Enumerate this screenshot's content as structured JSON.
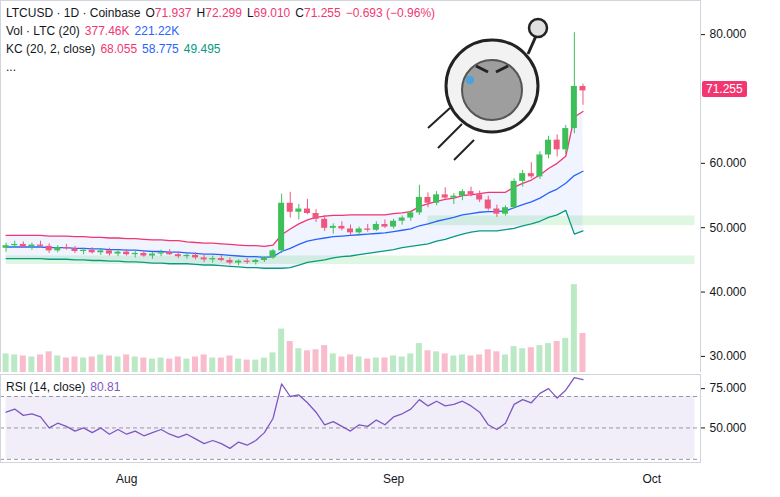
{
  "chart_data": {
    "type": "candlestick",
    "title": "LTCUSD · 1D · Coinbase",
    "quote": [
      {
        "prefix": "O",
        "text": "71.937"
      },
      {
        "prefix": "H",
        "text": "72.299"
      },
      {
        "prefix": "L",
        "text": "69.010"
      },
      {
        "prefix": "C",
        "text": "71.255"
      },
      {
        "prefix": "",
        "text": "−0.693 (−0.96%)"
      }
    ],
    "more": "...",
    "categories": [
      null,
      null,
      null,
      null,
      null,
      null,
      null,
      null,
      null,
      null,
      null,
      null,
      null,
      null,
      "Aug",
      null,
      null,
      null,
      null,
      null,
      null,
      null,
      null,
      null,
      null,
      null,
      null,
      null,
      null,
      null,
      null,
      null,
      null,
      null,
      null,
      null,
      null,
      null,
      null,
      null,
      null,
      null,
      null,
      null,
      null,
      "Sep",
      null,
      null,
      null,
      null,
      null,
      null,
      null,
      null,
      null,
      null,
      null,
      null,
      null,
      null,
      null,
      null,
      null,
      null,
      null,
      null,
      null,
      null,
      null,
      null,
      null,
      null,
      null,
      null,
      null,
      "Oct",
      null,
      null,
      null,
      null,
      null
    ],
    "open": [
      46.8,
      47.2,
      47.4,
      47.0,
      47.3,
      47.1,
      46.4,
      46.9,
      46.7,
      46.3,
      46.5,
      46.1,
      46.4,
      45.9,
      46.2,
      45.8,
      46.0,
      45.6,
      45.9,
      46.1,
      45.8,
      45.5,
      45.7,
      45.3,
      45.0,
      45.2,
      44.9,
      44.5,
      44.8,
      44.6,
      44.9,
      45.3,
      46.4,
      53.8,
      52.4,
      52.9,
      52.2,
      51.3,
      49.9,
      50.2,
      49.8,
      49.2,
      49.8,
      49.6,
      50.5,
      50.1,
      51.0,
      51.5,
      52.3,
      54.7,
      53.8,
      55.1,
      54.6,
      54.9,
      55.6,
      55.1,
      54.3,
      52.9,
      52.1,
      53.1,
      57.2,
      58.4,
      57.9,
      61.3,
      63.6,
      62.1,
      65.4,
      71.937,
      null,
      null,
      null,
      null,
      null,
      null,
      null,
      null,
      null,
      null,
      null,
      null,
      null
    ],
    "high": [
      47.6,
      47.9,
      47.8,
      47.6,
      47.9,
      47.5,
      47.2,
      47.4,
      47.1,
      46.8,
      46.9,
      46.7,
      46.8,
      46.5,
      46.6,
      46.3,
      46.4,
      46.1,
      46.5,
      46.6,
      46.2,
      46.0,
      46.1,
      45.8,
      45.6,
      45.7,
      45.3,
      45.0,
      45.2,
      45.1,
      45.5,
      46.6,
      55.2,
      55.5,
      53.6,
      54.4,
      52.8,
      51.9,
      50.6,
      50.9,
      50.4,
      50.1,
      50.5,
      50.9,
      51.2,
      51.3,
      51.8,
      52.6,
      56.6,
      55.4,
      55.6,
      56.2,
      55.3,
      55.9,
      56.3,
      55.7,
      54.9,
      53.5,
      53.4,
      57.6,
      58.9,
      60.1,
      61.8,
      64.2,
      64.4,
      65.9,
      80.3,
      72.299,
      null,
      null,
      null,
      null,
      null,
      null,
      null,
      null,
      null,
      null,
      null,
      null,
      null
    ],
    "low": [
      46.2,
      46.8,
      46.9,
      46.5,
      46.9,
      46.0,
      46.1,
      46.5,
      46.0,
      45.8,
      45.9,
      45.7,
      45.6,
      45.5,
      45.6,
      45.3,
      45.4,
      45.1,
      45.5,
      45.7,
      45.2,
      45.1,
      45.0,
      44.6,
      44.5,
      44.7,
      44.2,
      44.1,
      44.3,
      44.2,
      44.6,
      45.1,
      46.0,
      51.5,
      51.2,
      52.0,
      50.8,
      49.4,
      49.0,
      49.5,
      48.8,
      48.7,
      49.3,
      49.4,
      49.9,
      49.8,
      50.4,
      51.0,
      51.9,
      53.1,
      53.4,
      54.3,
      53.6,
      54.2,
      54.8,
      53.9,
      52.6,
      51.6,
      51.8,
      52.9,
      56.3,
      57.6,
      57.5,
      60.7,
      61.0,
      61.4,
      64.6,
      69.01,
      null,
      null,
      null,
      null,
      null,
      null,
      null,
      null,
      null,
      null,
      null,
      null,
      null
    ],
    "close": [
      47.2,
      47.4,
      47.0,
      47.3,
      47.1,
      46.4,
      46.9,
      46.7,
      46.3,
      46.5,
      46.1,
      46.4,
      45.9,
      46.2,
      45.8,
      46.0,
      45.6,
      45.9,
      46.1,
      45.8,
      45.5,
      45.7,
      45.3,
      45.0,
      45.2,
      44.9,
      44.5,
      44.8,
      44.6,
      44.9,
      45.3,
      46.4,
      53.8,
      52.4,
      52.9,
      52.2,
      51.3,
      49.9,
      50.2,
      49.8,
      49.2,
      49.8,
      49.6,
      50.5,
      50.1,
      51.0,
      51.5,
      52.3,
      54.7,
      53.8,
      55.1,
      54.6,
      54.9,
      55.6,
      55.1,
      54.3,
      52.9,
      52.1,
      53.1,
      57.2,
      58.4,
      57.9,
      61.3,
      63.6,
      62.1,
      65.4,
      71.948,
      71.255,
      null,
      null,
      null,
      null,
      null,
      null,
      null,
      null,
      null,
      null,
      null,
      null,
      null
    ],
    "ylim": [
      27.5,
      85.3
    ],
    "yticks": [
      {
        "value": 30,
        "label": "30.000"
      },
      {
        "value": 40,
        "label": "40.000"
      },
      {
        "value": 50,
        "label": "50.000"
      },
      {
        "value": 60,
        "label": "60.000"
      },
      {
        "value": 80,
        "label": "80.000"
      }
    ],
    "last_price_label": "71.255",
    "zones": [
      {
        "low": 50.3,
        "high": 51.8,
        "start": 49
      },
      {
        "low": 44.3,
        "high": 45.6,
        "start": 0
      }
    ],
    "volume": {
      "title": "Vol · LTC (20)",
      "readouts": [
        {
          "text": "377.46K",
          "color": "#f23672"
        },
        {
          "text": "221.22K",
          "color": "#2962ff"
        }
      ],
      "values": [
        180,
        170,
        160,
        150,
        170,
        200,
        160,
        140,
        150,
        140,
        150,
        170,
        160,
        150,
        170,
        150,
        140,
        130,
        140,
        130,
        150,
        130,
        150,
        170,
        140,
        140,
        160,
        130,
        120,
        120,
        140,
        190,
        420,
        300,
        230,
        210,
        220,
        260,
        180,
        150,
        170,
        150,
        130,
        140,
        140,
        160,
        150,
        180,
        280,
        210,
        200,
        180,
        160,
        170,
        160,
        170,
        220,
        200,
        170,
        250,
        230,
        240,
        260,
        280,
        300,
        330,
        850,
        377.46,
        null,
        null,
        null,
        null,
        null,
        null,
        null,
        null,
        null,
        null,
        null,
        null,
        null
      ],
      "ylim": [
        0,
        3600
      ]
    },
    "keltner": {
      "title": "KC (20, 2, close)",
      "series": [
        {
          "color": "#f23672",
          "readout": "68.055",
          "values": [
            48.8,
            48.8,
            48.8,
            48.8,
            48.8,
            48.7,
            48.7,
            48.7,
            48.6,
            48.6,
            48.5,
            48.5,
            48.4,
            48.4,
            48.3,
            48.3,
            48.2,
            48.1,
            48.1,
            48.0,
            48.0,
            47.8,
            47.7,
            47.6,
            47.6,
            47.5,
            47.4,
            47.3,
            47.2,
            47.2,
            47.1,
            47.3,
            48.9,
            49.8,
            50.6,
            51.2,
            51.6,
            51.8,
            51.9,
            51.9,
            52.0,
            52.0,
            52.0,
            52.0,
            52.0,
            52.2,
            52.3,
            52.5,
            53.3,
            53.7,
            54.1,
            54.4,
            54.6,
            55.0,
            55.1,
            55.3,
            55.5,
            55.5,
            55.5,
            56.3,
            56.9,
            57.4,
            58.2,
            59.2,
            60.0,
            61.1,
            67.2,
            68.055,
            null,
            null,
            null,
            null,
            null,
            null,
            null,
            null,
            null,
            null,
            null,
            null,
            null
          ]
        },
        {
          "color": "#2962ff",
          "readout": "58.775",
          "values": [
            47.0,
            47.0,
            47.0,
            47.0,
            47.0,
            46.9,
            46.9,
            46.9,
            46.8,
            46.8,
            46.7,
            46.7,
            46.6,
            46.6,
            46.5,
            46.5,
            46.4,
            46.3,
            46.3,
            46.2,
            46.2,
            46.1,
            46.0,
            45.9,
            45.9,
            45.8,
            45.7,
            45.6,
            45.5,
            45.5,
            45.4,
            45.5,
            46.3,
            46.8,
            47.4,
            47.9,
            48.2,
            48.4,
            48.6,
            48.7,
            48.8,
            48.9,
            49.0,
            49.1,
            49.2,
            49.4,
            49.6,
            49.8,
            50.3,
            50.6,
            51.0,
            51.3,
            51.6,
            52.0,
            52.2,
            52.4,
            52.5,
            52.5,
            52.6,
            53.1,
            53.6,
            54.0,
            54.6,
            55.4,
            56.0,
            56.9,
            58.1,
            58.775,
            null,
            null,
            null,
            null,
            null,
            null,
            null,
            null,
            null,
            null,
            null,
            null,
            null
          ]
        },
        {
          "color": "#089981",
          "readout": "49.495",
          "values": [
            45.2,
            45.2,
            45.2,
            45.2,
            45.2,
            45.1,
            45.1,
            45.1,
            45.0,
            45.0,
            44.9,
            44.9,
            44.8,
            44.8,
            44.7,
            44.7,
            44.6,
            44.5,
            44.5,
            44.4,
            44.4,
            44.4,
            44.3,
            44.2,
            44.2,
            44.1,
            44.0,
            43.9,
            43.8,
            43.8,
            43.7,
            43.7,
            43.7,
            43.8,
            44.2,
            44.6,
            44.8,
            45.0,
            45.3,
            45.5,
            45.6,
            45.8,
            46.0,
            46.2,
            46.4,
            46.6,
            46.9,
            47.1,
            47.3,
            47.5,
            47.9,
            48.2,
            48.6,
            49.0,
            49.3,
            49.5,
            49.5,
            49.5,
            49.7,
            49.9,
            50.3,
            50.6,
            51.0,
            51.6,
            52.0,
            52.7,
            49.0,
            49.495,
            null,
            null,
            null,
            null,
            null,
            null,
            null,
            null,
            null,
            null,
            null,
            null,
            null
          ]
        }
      ]
    },
    "rsi": {
      "title": "RSI (14, close)",
      "readout": "80.81",
      "color": "#7e57c2",
      "values": [
        60,
        62,
        58,
        59,
        57,
        50,
        53,
        51,
        48,
        50,
        47,
        50,
        46,
        49,
        46,
        48,
        45,
        47,
        49,
        46,
        44,
        46,
        43,
        40,
        42,
        40,
        37,
        41,
        39,
        42,
        47,
        56,
        78,
        70,
        71,
        66,
        60,
        52,
        54,
        51,
        48,
        52,
        51,
        55,
        52,
        57,
        59,
        62,
        68,
        64,
        67,
        64,
        65,
        67,
        64,
        60,
        52,
        49,
        53,
        65,
        68,
        66,
        72,
        75,
        69,
        74,
        82,
        80.81,
        null,
        null,
        null,
        null,
        null,
        null,
        null,
        null,
        null,
        null,
        null,
        null,
        null
      ],
      "ylim": [
        28,
        84
      ],
      "yticks": [
        {
          "value": 50,
          "label": "50.000"
        },
        {
          "value": 75,
          "label": "75.000"
        }
      ],
      "band": [
        30,
        70
      ],
      "midline": 50
    }
  }
}
